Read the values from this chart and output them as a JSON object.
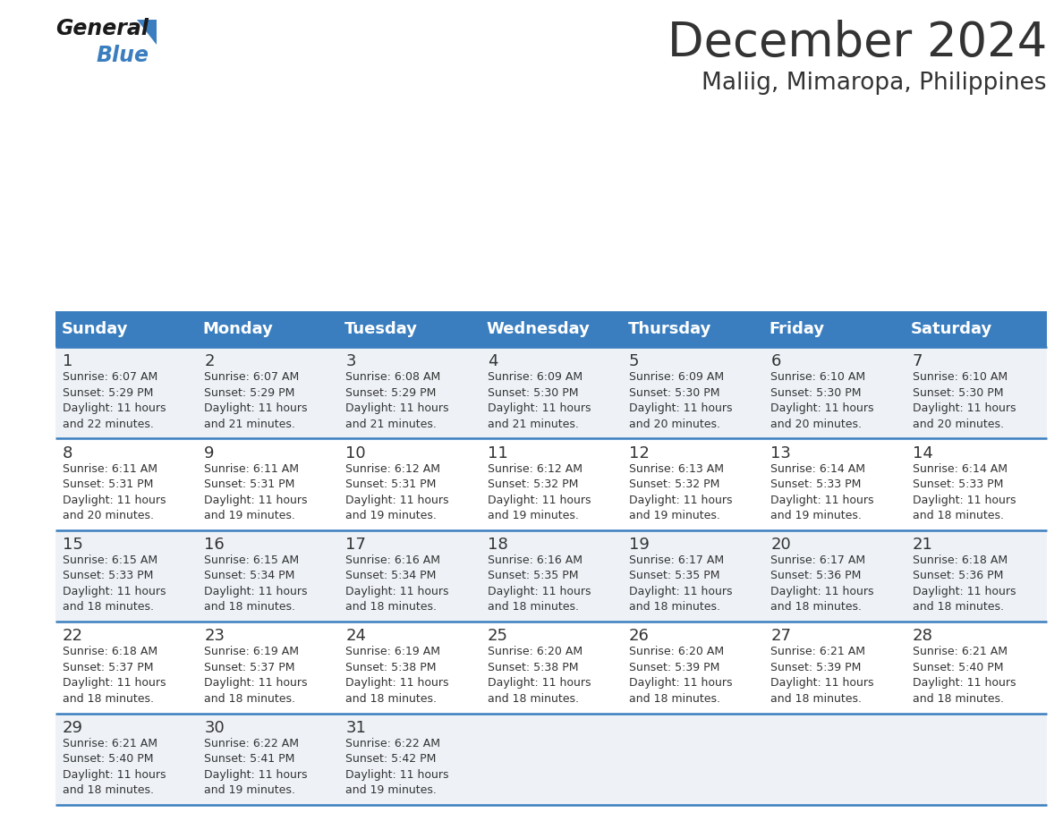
{
  "title": "December 2024",
  "subtitle": "Maliig, Mimaropa, Philippines",
  "header_bg_color": "#3a7ebf",
  "header_text_color": "#ffffff",
  "row_bg_colors": [
    "#eef2f7",
    "#ffffff",
    "#eef2f7",
    "#ffffff",
    "#eef2f7"
  ],
  "grid_line_color": "#3a7ebf",
  "day_headers": [
    "Sunday",
    "Monday",
    "Tuesday",
    "Wednesday",
    "Thursday",
    "Friday",
    "Saturday"
  ],
  "days": [
    {
      "day": 1,
      "col": 0,
      "row": 0,
      "sunrise": "6:07 AM",
      "sunset": "5:29 PM",
      "daylight_hours": 11,
      "daylight_minutes": 22
    },
    {
      "day": 2,
      "col": 1,
      "row": 0,
      "sunrise": "6:07 AM",
      "sunset": "5:29 PM",
      "daylight_hours": 11,
      "daylight_minutes": 21
    },
    {
      "day": 3,
      "col": 2,
      "row": 0,
      "sunrise": "6:08 AM",
      "sunset": "5:29 PM",
      "daylight_hours": 11,
      "daylight_minutes": 21
    },
    {
      "day": 4,
      "col": 3,
      "row": 0,
      "sunrise": "6:09 AM",
      "sunset": "5:30 PM",
      "daylight_hours": 11,
      "daylight_minutes": 21
    },
    {
      "day": 5,
      "col": 4,
      "row": 0,
      "sunrise": "6:09 AM",
      "sunset": "5:30 PM",
      "daylight_hours": 11,
      "daylight_minutes": 20
    },
    {
      "day": 6,
      "col": 5,
      "row": 0,
      "sunrise": "6:10 AM",
      "sunset": "5:30 PM",
      "daylight_hours": 11,
      "daylight_minutes": 20
    },
    {
      "day": 7,
      "col": 6,
      "row": 0,
      "sunrise": "6:10 AM",
      "sunset": "5:30 PM",
      "daylight_hours": 11,
      "daylight_minutes": 20
    },
    {
      "day": 8,
      "col": 0,
      "row": 1,
      "sunrise": "6:11 AM",
      "sunset": "5:31 PM",
      "daylight_hours": 11,
      "daylight_minutes": 20
    },
    {
      "day": 9,
      "col": 1,
      "row": 1,
      "sunrise": "6:11 AM",
      "sunset": "5:31 PM",
      "daylight_hours": 11,
      "daylight_minutes": 19
    },
    {
      "day": 10,
      "col": 2,
      "row": 1,
      "sunrise": "6:12 AM",
      "sunset": "5:31 PM",
      "daylight_hours": 11,
      "daylight_minutes": 19
    },
    {
      "day": 11,
      "col": 3,
      "row": 1,
      "sunrise": "6:12 AM",
      "sunset": "5:32 PM",
      "daylight_hours": 11,
      "daylight_minutes": 19
    },
    {
      "day": 12,
      "col": 4,
      "row": 1,
      "sunrise": "6:13 AM",
      "sunset": "5:32 PM",
      "daylight_hours": 11,
      "daylight_minutes": 19
    },
    {
      "day": 13,
      "col": 5,
      "row": 1,
      "sunrise": "6:14 AM",
      "sunset": "5:33 PM",
      "daylight_hours": 11,
      "daylight_minutes": 19
    },
    {
      "day": 14,
      "col": 6,
      "row": 1,
      "sunrise": "6:14 AM",
      "sunset": "5:33 PM",
      "daylight_hours": 11,
      "daylight_minutes": 18
    },
    {
      "day": 15,
      "col": 0,
      "row": 2,
      "sunrise": "6:15 AM",
      "sunset": "5:33 PM",
      "daylight_hours": 11,
      "daylight_minutes": 18
    },
    {
      "day": 16,
      "col": 1,
      "row": 2,
      "sunrise": "6:15 AM",
      "sunset": "5:34 PM",
      "daylight_hours": 11,
      "daylight_minutes": 18
    },
    {
      "day": 17,
      "col": 2,
      "row": 2,
      "sunrise": "6:16 AM",
      "sunset": "5:34 PM",
      "daylight_hours": 11,
      "daylight_minutes": 18
    },
    {
      "day": 18,
      "col": 3,
      "row": 2,
      "sunrise": "6:16 AM",
      "sunset": "5:35 PM",
      "daylight_hours": 11,
      "daylight_minutes": 18
    },
    {
      "day": 19,
      "col": 4,
      "row": 2,
      "sunrise": "6:17 AM",
      "sunset": "5:35 PM",
      "daylight_hours": 11,
      "daylight_minutes": 18
    },
    {
      "day": 20,
      "col": 5,
      "row": 2,
      "sunrise": "6:17 AM",
      "sunset": "5:36 PM",
      "daylight_hours": 11,
      "daylight_minutes": 18
    },
    {
      "day": 21,
      "col": 6,
      "row": 2,
      "sunrise": "6:18 AM",
      "sunset": "5:36 PM",
      "daylight_hours": 11,
      "daylight_minutes": 18
    },
    {
      "day": 22,
      "col": 0,
      "row": 3,
      "sunrise": "6:18 AM",
      "sunset": "5:37 PM",
      "daylight_hours": 11,
      "daylight_minutes": 18
    },
    {
      "day": 23,
      "col": 1,
      "row": 3,
      "sunrise": "6:19 AM",
      "sunset": "5:37 PM",
      "daylight_hours": 11,
      "daylight_minutes": 18
    },
    {
      "day": 24,
      "col": 2,
      "row": 3,
      "sunrise": "6:19 AM",
      "sunset": "5:38 PM",
      "daylight_hours": 11,
      "daylight_minutes": 18
    },
    {
      "day": 25,
      "col": 3,
      "row": 3,
      "sunrise": "6:20 AM",
      "sunset": "5:38 PM",
      "daylight_hours": 11,
      "daylight_minutes": 18
    },
    {
      "day": 26,
      "col": 4,
      "row": 3,
      "sunrise": "6:20 AM",
      "sunset": "5:39 PM",
      "daylight_hours": 11,
      "daylight_minutes": 18
    },
    {
      "day": 27,
      "col": 5,
      "row": 3,
      "sunrise": "6:21 AM",
      "sunset": "5:39 PM",
      "daylight_hours": 11,
      "daylight_minutes": 18
    },
    {
      "day": 28,
      "col": 6,
      "row": 3,
      "sunrise": "6:21 AM",
      "sunset": "5:40 PM",
      "daylight_hours": 11,
      "daylight_minutes": 18
    },
    {
      "day": 29,
      "col": 0,
      "row": 4,
      "sunrise": "6:21 AM",
      "sunset": "5:40 PM",
      "daylight_hours": 11,
      "daylight_minutes": 18
    },
    {
      "day": 30,
      "col": 1,
      "row": 4,
      "sunrise": "6:22 AM",
      "sunset": "5:41 PM",
      "daylight_hours": 11,
      "daylight_minutes": 19
    },
    {
      "day": 31,
      "col": 2,
      "row": 4,
      "sunrise": "6:22 AM",
      "sunset": "5:42 PM",
      "daylight_hours": 11,
      "daylight_minutes": 19
    }
  ],
  "num_rows": 5,
  "num_cols": 7,
  "logo_text_general": "General",
  "logo_text_blue": "Blue",
  "logo_triangle_color": "#3a7ebf",
  "text_color_dark": "#333333",
  "title_fontsize": 38,
  "subtitle_fontsize": 19,
  "header_fontsize": 13,
  "day_num_fontsize": 13,
  "cell_text_fontsize": 9,
  "fig_width": 11.88,
  "fig_height": 9.18,
  "dpi": 100
}
